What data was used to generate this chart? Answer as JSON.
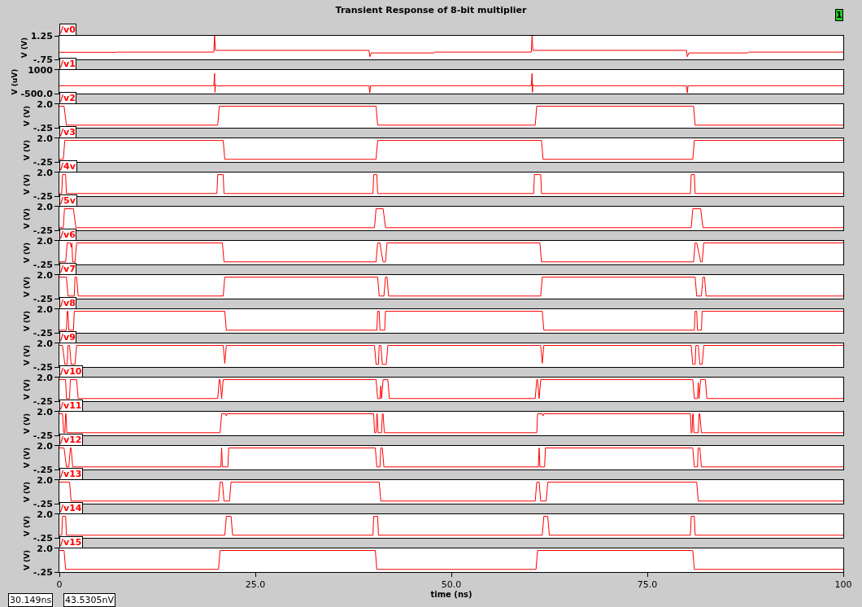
{
  "chart_data": [
    {
      "type": "line",
      "title": "Transient Response of 8-bit multiplier",
      "annotations": [
        "1"
      ],
      "ylabel": "V (V)",
      "xlim": [
        0,
        100
      ],
      "ylim": [
        -0.75,
        1.25
      ],
      "yticks": [
        {
          "value": 1.25,
          "label": "1.25"
        },
        {
          "value": -0.75,
          "label": "-.75"
        }
      ],
      "tick_labels": "y",
      "series": [
        {
          "name": "/v0",
          "color": "#ff0000",
          "x": [
            0,
            7.3,
            7.4,
            19.7,
            19.8,
            19.9,
            39.5,
            39.6,
            39.8,
            47.8,
            47.9,
            60.2,
            60.3,
            60.4,
            80.0,
            80.1,
            80.3,
            87.8,
            87.9,
            100
          ],
          "values": [
            -0.15,
            -0.15,
            -0.13,
            -0.13,
            1.25,
            0.02,
            0.02,
            -0.52,
            -0.2,
            -0.2,
            -0.13,
            -0.13,
            1.25,
            0.02,
            0.02,
            -0.52,
            -0.2,
            -0.2,
            -0.13,
            -0.13
          ]
        }
      ]
    },
    {
      "type": "line",
      "ylabel": "V (uV)",
      "xlim": [
        0,
        100
      ],
      "ylim": [
        -500,
        1000
      ],
      "yticks": [
        {
          "value": 1000,
          "label": "1000"
        },
        {
          "value": -500,
          "label": "-500.0"
        }
      ],
      "tick_labels": "y",
      "series": [
        {
          "name": "/v1",
          "color": "#ff0000",
          "x": [
            0,
            19.7,
            19.8,
            19.85,
            19.9,
            20.2,
            21.0,
            39.5,
            39.6,
            39.7,
            60.2,
            60.3,
            60.35,
            60.4,
            60.7,
            61.5,
            80.0,
            80.1,
            80.2,
            100
          ],
          "values": [
            0,
            0,
            780,
            -420,
            60,
            -20,
            0,
            0,
            -450,
            0,
            0,
            780,
            -420,
            60,
            -20,
            0,
            0,
            -450,
            0,
            0
          ]
        }
      ]
    },
    {
      "type": "line",
      "ylabel": "V (V)",
      "xlim": [
        0,
        100
      ],
      "ylim": [
        -0.25,
        2.0
      ],
      "yticks": [
        {
          "value": 2.0,
          "label": "2.0"
        },
        {
          "value": -0.25,
          "label": "-.25"
        }
      ],
      "tick_labels": "y",
      "series": [
        {
          "name": "/v2",
          "color": "#ff0000",
          "x": [
            0,
            0.6,
            0.9,
            20.2,
            20.4,
            40.4,
            40.6,
            60.7,
            60.9,
            80.9,
            81.1,
            100
          ],
          "values": [
            1.8,
            1.8,
            0,
            0,
            1.8,
            1.8,
            0,
            0,
            1.8,
            1.8,
            0,
            0
          ]
        }
      ]
    },
    {
      "type": "line",
      "ylabel": "V (V)",
      "xlim": [
        0,
        100
      ],
      "ylim": [
        -0.25,
        2.0
      ],
      "yticks": [
        {
          "value": 2.0,
          "label": "2.0"
        },
        {
          "value": -0.25,
          "label": "-.25"
        }
      ],
      "tick_labels": "y",
      "series": [
        {
          "name": "/v3",
          "color": "#ff0000",
          "x": [
            0,
            0.5,
            0.7,
            20.9,
            21.1,
            40.4,
            40.6,
            61.5,
            61.7,
            80.8,
            81.0,
            100
          ],
          "values": [
            0,
            0,
            1.8,
            1.8,
            0,
            0,
            1.8,
            1.8,
            0,
            0,
            1.8,
            1.8
          ]
        }
      ]
    },
    {
      "type": "line",
      "ylabel": "V (V)",
      "xlim": [
        0,
        100
      ],
      "ylim": [
        -0.25,
        2.0
      ],
      "yticks": [
        {
          "value": 2.0,
          "label": "2.0"
        },
        {
          "value": -0.25,
          "label": "-.25"
        }
      ],
      "tick_labels": "y",
      "series": [
        {
          "name": "/4v",
          "color": "#ff0000",
          "x": [
            0,
            0.3,
            0.4,
            0.8,
            0.9,
            20.1,
            20.2,
            20.9,
            21.0,
            40.0,
            40.1,
            40.5,
            40.6,
            60.5,
            60.6,
            61.4,
            61.5,
            80.5,
            80.6,
            81.0,
            81.1,
            100
          ],
          "values": [
            0,
            0,
            1.8,
            1.8,
            0,
            0,
            1.8,
            1.8,
            0,
            0,
            1.8,
            1.8,
            0,
            0,
            1.8,
            1.8,
            0,
            0,
            1.8,
            1.8,
            0,
            0
          ]
        }
      ]
    },
    {
      "type": "line",
      "ylabel": "V (V)",
      "xlim": [
        0,
        100
      ],
      "ylim": [
        -0.25,
        2.0
      ],
      "yticks": [
        {
          "value": 2.0,
          "label": "2.0"
        },
        {
          "value": -0.25,
          "label": "-.25"
        }
      ],
      "tick_labels": "y",
      "series": [
        {
          "name": "/5v",
          "color": "#ff0000",
          "x": [
            0,
            0.5,
            0.65,
            1.8,
            2.1,
            40.2,
            40.4,
            41.3,
            41.6,
            80.6,
            80.8,
            81.8,
            82.1,
            100
          ],
          "values": [
            0,
            0,
            1.8,
            1.8,
            0,
            0,
            1.8,
            1.8,
            0,
            0,
            1.8,
            1.8,
            0,
            0
          ]
        }
      ]
    },
    {
      "type": "line",
      "ylabel": "V (V)",
      "xlim": [
        0,
        100
      ],
      "ylim": [
        -0.25,
        2.0
      ],
      "yticks": [
        {
          "value": 2.0,
          "label": "2.0"
        },
        {
          "value": -0.25,
          "label": "-.25"
        }
      ],
      "tick_labels": "y",
      "series": [
        {
          "name": "/v6",
          "color": "#ff0000",
          "x": [
            0,
            0.8,
            1.0,
            1.4,
            1.5,
            1.6,
            1.7,
            2.0,
            2.2,
            20.8,
            21.0,
            40.4,
            40.6,
            40.9,
            41.1,
            41.3,
            41.6,
            41.8,
            61.3,
            61.5,
            80.9,
            81.1,
            81.3,
            81.6,
            81.8,
            82.0,
            82.2,
            100
          ],
          "values": [
            0,
            0,
            1.8,
            1.8,
            1.4,
            1.8,
            0,
            0,
            1.8,
            1.8,
            0,
            0,
            1.8,
            1.8,
            0.8,
            0,
            0,
            1.8,
            1.8,
            0,
            0,
            1.8,
            1.8,
            0.8,
            0,
            0,
            1.8,
            1.8
          ]
        }
      ]
    },
    {
      "type": "line",
      "ylabel": "V (V)",
      "xlim": [
        0,
        100
      ],
      "ylim": [
        -0.25,
        2.0
      ],
      "yticks": [
        {
          "value": 2.0,
          "label": "2.0"
        },
        {
          "value": -0.25,
          "label": "-.25"
        }
      ],
      "tick_labels": "y",
      "series": [
        {
          "name": "/v7",
          "color": "#ff0000",
          "x": [
            0,
            0.9,
            1.1,
            1.9,
            2.0,
            2.2,
            2.4,
            20.9,
            21.1,
            40.6,
            40.8,
            41.4,
            41.6,
            41.8,
            42.0,
            61.4,
            61.6,
            81.1,
            81.3,
            81.9,
            82.1,
            82.3,
            82.5,
            100
          ],
          "values": [
            1.8,
            1.8,
            0,
            0,
            1.8,
            1.8,
            0,
            0,
            1.8,
            1.8,
            0,
            0,
            1.8,
            1.8,
            0,
            0,
            1.8,
            1.8,
            0,
            0,
            1.8,
            1.8,
            0,
            0
          ]
        }
      ]
    },
    {
      "type": "line",
      "ylabel": "V (V)",
      "xlim": [
        0,
        100
      ],
      "ylim": [
        -0.25,
        2.0
      ],
      "yticks": [
        {
          "value": 2.0,
          "label": "2.0"
        },
        {
          "value": -0.25,
          "label": "-.25"
        }
      ],
      "tick_labels": "y",
      "series": [
        {
          "name": "/v8",
          "color": "#ff0000",
          "x": [
            0,
            0.9,
            1.0,
            1.1,
            1.2,
            1.8,
            1.9,
            21.1,
            21.3,
            40.5,
            40.6,
            40.8,
            40.9,
            41.5,
            41.6,
            61.6,
            61.8,
            81.0,
            81.1,
            81.3,
            81.4,
            81.9,
            82.0,
            100
          ],
          "values": [
            0,
            0,
            1.8,
            1.8,
            0,
            0,
            1.8,
            1.8,
            0,
            0,
            1.8,
            1.8,
            0,
            0,
            1.8,
            1.8,
            0,
            0,
            1.8,
            1.8,
            0,
            0,
            1.8,
            1.8
          ]
        }
      ]
    },
    {
      "type": "line",
      "ylabel": "V (V)",
      "xlim": [
        0,
        100
      ],
      "ylim": [
        -0.25,
        2.0
      ],
      "yticks": [
        {
          "value": 2.0,
          "label": "2.0"
        },
        {
          "value": -0.25,
          "label": "-.25"
        }
      ],
      "tick_labels": "y",
      "series": [
        {
          "name": "/v9",
          "color": "#ff0000",
          "x": [
            0,
            0.4,
            0.7,
            1.0,
            1.1,
            1.3,
            1.5,
            2.0,
            2.2,
            20.9,
            21.1,
            21.3,
            40.2,
            40.4,
            40.7,
            40.8,
            41.0,
            41.2,
            41.7,
            41.9,
            61.4,
            61.6,
            61.8,
            80.6,
            80.8,
            81.1,
            81.2,
            81.5,
            81.7,
            82.0,
            82.2,
            100
          ],
          "values": [
            1.8,
            1.8,
            0,
            0,
            1.8,
            1.8,
            0,
            0,
            1.8,
            1.8,
            0.1,
            1.8,
            1.8,
            0,
            0,
            1.8,
            1.8,
            0,
            0,
            1.8,
            1.8,
            0.1,
            1.8,
            1.8,
            0,
            0,
            1.8,
            1.8,
            0,
            0,
            1.8,
            1.8
          ]
        }
      ]
    },
    {
      "type": "line",
      "ylabel": "V (V)",
      "xlim": [
        0,
        100
      ],
      "ylim": [
        -0.25,
        2.0
      ],
      "yticks": [
        {
          "value": 2.0,
          "label": "2.0"
        },
        {
          "value": -0.25,
          "label": "-.25"
        }
      ],
      "tick_labels": "y",
      "series": [
        {
          "name": "/v10",
          "color": "#ff0000",
          "x": [
            0,
            0.8,
            0.9,
            1.3,
            1.4,
            2.2,
            2.4,
            20.2,
            20.4,
            20.5,
            20.7,
            20.9,
            40.4,
            40.6,
            40.9,
            41.0,
            41.1,
            41.3,
            41.9,
            42.1,
            60.7,
            60.9,
            61.0,
            61.2,
            61.4,
            80.8,
            81.0,
            81.4,
            81.5,
            81.6,
            81.8,
            82.4,
            82.6,
            100
          ],
          "values": [
            1.8,
            1.8,
            0,
            0,
            1.8,
            1.8,
            0,
            0,
            1.8,
            1.8,
            0,
            1.8,
            1.8,
            0,
            0,
            1.2,
            0,
            1.8,
            1.8,
            0,
            0,
            1.8,
            1.8,
            0,
            1.8,
            1.8,
            0,
            0,
            1.5,
            0,
            1.8,
            1.8,
            0,
            0
          ]
        }
      ]
    },
    {
      "type": "line",
      "ylabel": "V (V)",
      "xlim": [
        0,
        100
      ],
      "ylim": [
        -0.25,
        2.0
      ],
      "yticks": [
        {
          "value": 2.0,
          "label": "2.0"
        },
        {
          "value": -0.25,
          "label": "-.25"
        }
      ],
      "tick_labels": "y",
      "series": [
        {
          "name": "/v11",
          "color": "#ff0000",
          "x": [
            0,
            0.4,
            0.55,
            0.7,
            0.8,
            0.85,
            0.95,
            20.5,
            20.7,
            21.2,
            21.3,
            21.4,
            40.1,
            40.2,
            40.4,
            40.5,
            40.55,
            40.65,
            41.1,
            41.2,
            41.3,
            41.45,
            60.9,
            61.0,
            61.6,
            61.7,
            61.8,
            80.5,
            80.6,
            80.7,
            80.8,
            80.85,
            80.95,
            81.5,
            81.6,
            81.7,
            81.9,
            100
          ],
          "values": [
            1.8,
            1.8,
            0,
            0,
            1.8,
            1.8,
            0,
            0,
            1.8,
            1.8,
            1.6,
            1.8,
            1.8,
            0,
            0,
            1.8,
            1.8,
            0,
            0,
            1.8,
            1.8,
            0,
            0,
            1.8,
            1.8,
            1.6,
            1.8,
            1.8,
            0,
            0,
            1.8,
            1.8,
            0,
            0,
            1.8,
            1.8,
            0,
            0
          ]
        }
      ]
    },
    {
      "type": "line",
      "ylabel": "V (V)",
      "xlim": [
        0,
        100
      ],
      "ylim": [
        -0.25,
        2.0
      ],
      "yticks": [
        {
          "value": 2.0,
          "label": "2.0"
        },
        {
          "value": -0.25,
          "label": "-.25"
        }
      ],
      "tick_labels": "y",
      "series": [
        {
          "name": "/v12",
          "color": "#ff0000",
          "x": [
            0,
            0.6,
            0.9,
            1.2,
            1.4,
            1.5,
            1.7,
            20.6,
            20.7,
            20.8,
            21.5,
            21.6,
            40.3,
            40.5,
            40.9,
            41.0,
            41.2,
            41.4,
            61.1,
            61.2,
            61.3,
            61.9,
            62.0,
            80.8,
            81.0,
            81.4,
            81.5,
            81.7,
            81.9,
            100
          ],
          "values": [
            1.8,
            1.8,
            0,
            0,
            1.8,
            1.8,
            0,
            0,
            1.8,
            0,
            0,
            1.8,
            1.8,
            0,
            0,
            1.8,
            1.8,
            0,
            0,
            1.8,
            0,
            0,
            1.8,
            1.8,
            0,
            0,
            1.8,
            1.8,
            0,
            0
          ]
        }
      ]
    },
    {
      "type": "line",
      "ylabel": "V (V)",
      "xlim": [
        0,
        100
      ],
      "ylim": [
        -0.25,
        2.0
      ],
      "yticks": [
        {
          "value": 2.0,
          "label": "2.0"
        },
        {
          "value": -0.25,
          "label": "-.25"
        }
      ],
      "tick_labels": "y",
      "series": [
        {
          "name": "/v13",
          "color": "#ff0000",
          "x": [
            0,
            1.3,
            1.5,
            20.3,
            20.5,
            20.8,
            21.0,
            21.7,
            21.9,
            40.8,
            41.0,
            60.7,
            60.9,
            61.2,
            61.4,
            62.1,
            62.3,
            81.3,
            81.5,
            100
          ],
          "values": [
            1.8,
            1.8,
            0,
            0,
            1.8,
            1.8,
            0,
            0,
            1.8,
            1.8,
            0,
            0,
            1.8,
            1.8,
            0,
            0,
            1.8,
            1.8,
            0,
            0
          ]
        }
      ]
    },
    {
      "type": "line",
      "ylabel": "V (V)",
      "xlim": [
        0,
        100
      ],
      "ylim": [
        -0.25,
        2.0
      ],
      "yticks": [
        {
          "value": 2.0,
          "label": "2.0"
        },
        {
          "value": -0.25,
          "label": "-.25"
        }
      ],
      "tick_labels": "y",
      "series": [
        {
          "name": "/v14",
          "color": "#ff0000",
          "x": [
            0,
            0.3,
            0.4,
            0.8,
            0.9,
            21.1,
            21.3,
            21.9,
            22.1,
            40.0,
            40.1,
            40.6,
            40.7,
            61.6,
            61.8,
            62.3,
            62.5,
            80.5,
            80.6,
            81.0,
            81.1,
            100
          ],
          "values": [
            0,
            0,
            1.8,
            1.8,
            0,
            0,
            1.8,
            1.8,
            0,
            0,
            1.8,
            1.8,
            0,
            0,
            1.8,
            1.8,
            0,
            0,
            1.8,
            1.8,
            0,
            0
          ]
        }
      ]
    },
    {
      "type": "line",
      "ylabel": "V (V)",
      "xlabel": "time (ns)",
      "annotations": [
        "30.149ns",
        "43.5305nV"
      ],
      "xlim": [
        0,
        100
      ],
      "ylim": [
        -0.25,
        2.0
      ],
      "yticks": [
        {
          "value": 2.0,
          "label": "2.0"
        },
        {
          "value": -0.25,
          "label": "-.25"
        }
      ],
      "xticks": [
        0,
        {
          "value": 25,
          "label": "25.0"
        },
        {
          "value": 50,
          "label": "50.0"
        },
        {
          "value": 75,
          "label": "75.0"
        },
        100
      ],
      "series": [
        {
          "name": "/v15",
          "color": "#ff0000",
          "x": [
            0,
            0.6,
            0.8,
            20.3,
            20.5,
            40.3,
            40.5,
            60.8,
            61.0,
            80.8,
            81.0,
            100
          ],
          "values": [
            1.8,
            1.8,
            0,
            0,
            1.8,
            1.8,
            0,
            0,
            1.8,
            1.8,
            0,
            0
          ]
        }
      ]
    }
  ]
}
